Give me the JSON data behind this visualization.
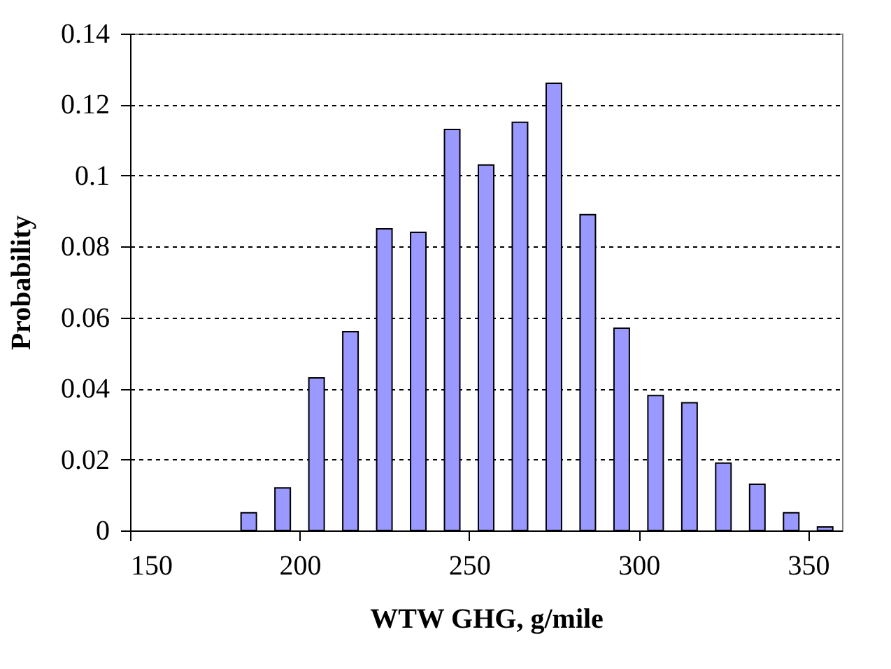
{
  "chart_data": {
    "type": "histogram",
    "xlabel": "WTW GHG, g/mile",
    "ylabel": "Probability",
    "bins": [
      180,
      190,
      200,
      210,
      220,
      230,
      240,
      250,
      260,
      270,
      280,
      290,
      300,
      310,
      320,
      330,
      340,
      350,
      360
    ],
    "values": [
      0.005,
      0.012,
      0.043,
      0.056,
      0.085,
      0.084,
      0.113,
      0.103,
      0.115,
      0.126,
      0.089,
      0.057,
      0.038,
      0.036,
      0.019,
      0.013,
      0.005,
      0.001
    ],
    "color": "#9999ff",
    "xlim": [
      150,
      360
    ],
    "xticks": [
      150,
      200,
      250,
      300,
      350
    ],
    "ylim": [
      0,
      0.14
    ],
    "yticks": [
      0,
      0.02,
      0.04,
      0.06,
      0.08,
      0.1,
      0.12,
      0.14
    ],
    "grid": "y"
  }
}
